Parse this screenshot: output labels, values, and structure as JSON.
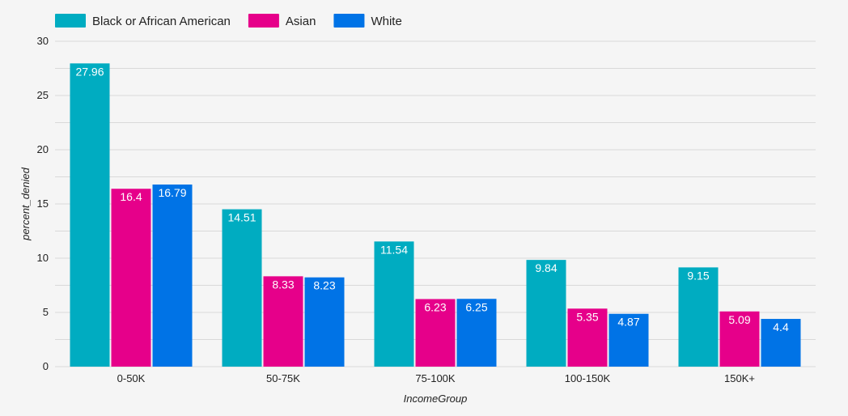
{
  "chart_data": {
    "type": "bar",
    "categories": [
      "0-50K",
      "50-75K",
      "75-100K",
      "100-150K",
      "150K+"
    ],
    "series": [
      {
        "name": "Black or African American",
        "color": "#00acc1",
        "values": [
          27.96,
          14.51,
          11.54,
          9.84,
          9.15
        ]
      },
      {
        "name": "Asian",
        "color": "#e6008a",
        "values": [
          16.4,
          8.33,
          6.23,
          5.35,
          5.09
        ]
      },
      {
        "name": "White",
        "color": "#0073e6",
        "values": [
          16.79,
          8.23,
          6.25,
          4.87,
          4.4
        ]
      }
    ],
    "xlabel": "IncomeGroup",
    "ylabel": "percent_denied",
    "ylim": [
      0,
      30
    ],
    "yticks": [
      0,
      5,
      10,
      15,
      20,
      25,
      30
    ],
    "grid": true,
    "legend_position": "top-left",
    "data_labels": true
  }
}
